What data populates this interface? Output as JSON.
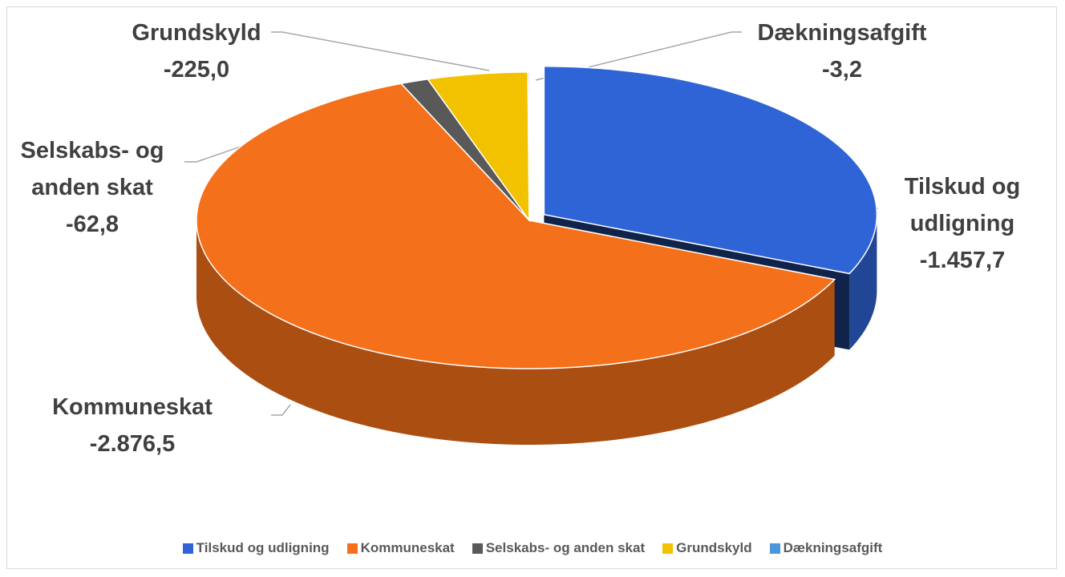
{
  "chart_data": {
    "type": "pie",
    "categories": [
      "Tilskud og udligning",
      "Kommuneskat",
      "Selskabs- og anden skat",
      "Grundskyld",
      "Dækningsafgift"
    ],
    "values": [
      -1457.7,
      -2876.5,
      -62.8,
      -225.0,
      -3.2
    ],
    "value_labels": [
      "-1.457,7",
      "-2.876,5",
      "-62,8",
      "-225,0",
      "-3,2"
    ],
    "colors": [
      "#2f64d6",
      "#f5701a",
      "#595959",
      "#f2c200",
      "#4a95dd"
    ],
    "legend": "bottom"
  }
}
